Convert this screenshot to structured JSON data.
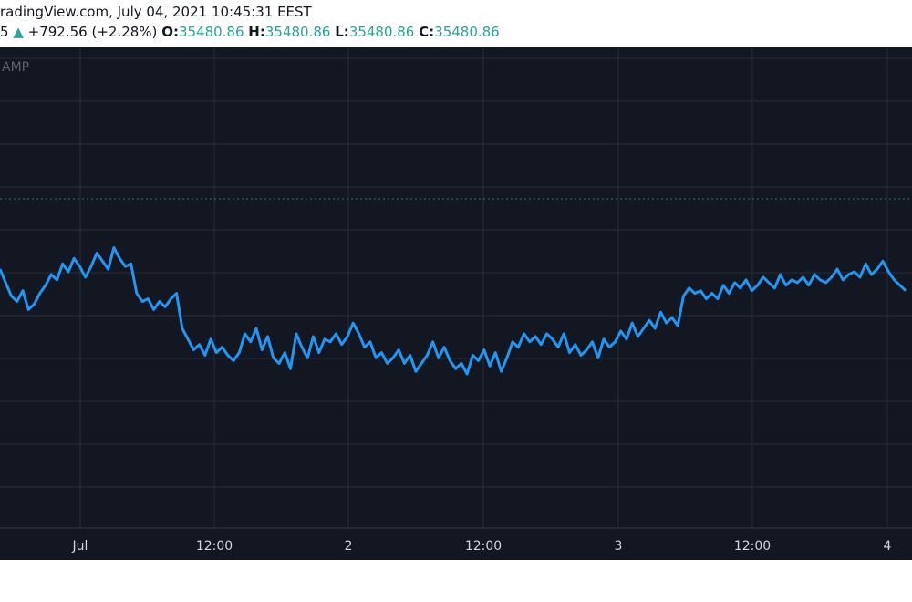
{
  "header": {
    "source_line": "radingView.com, July 04, 2021 10:45:31 EEST",
    "change_prefix": "5",
    "change_arrow": "▲",
    "change_text": "+792.56 (+2.28%)",
    "open_label": "O:",
    "open_value": "35480.86",
    "high_label": "H:",
    "high_value": "35480.86",
    "low_label": "L:",
    "low_value": "35480.86",
    "close_label": "C:",
    "close_value": "35480.86"
  },
  "watermark": "AMP",
  "colors": {
    "line": "#2196f3",
    "background": "#131722",
    "grid": "#2a2e39",
    "up": "#26a69a"
  },
  "chart_data": {
    "type": "line",
    "x_ticks": [
      "Jul",
      "12:00",
      "2",
      "12:00",
      "3",
      "12:00",
      "4"
    ],
    "grid": true,
    "series": [
      {
        "values": [
          0.82,
          0.77,
          0.72,
          0.7,
          0.74,
          0.67,
          0.69,
          0.73,
          0.76,
          0.8,
          0.78,
          0.84,
          0.81,
          0.86,
          0.83,
          0.79,
          0.83,
          0.88,
          0.85,
          0.82,
          0.9,
          0.86,
          0.83,
          0.84,
          0.73,
          0.7,
          0.71,
          0.67,
          0.7,
          0.68,
          0.71,
          0.73,
          0.6,
          0.56,
          0.52,
          0.54,
          0.5,
          0.56,
          0.51,
          0.53,
          0.5,
          0.48,
          0.51,
          0.58,
          0.55,
          0.6,
          0.52,
          0.57,
          0.49,
          0.47,
          0.51,
          0.45,
          0.58,
          0.53,
          0.49,
          0.57,
          0.51,
          0.56,
          0.55,
          0.58,
          0.54,
          0.57,
          0.62,
          0.58,
          0.53,
          0.55,
          0.49,
          0.51,
          0.47,
          0.49,
          0.52,
          0.47,
          0.5,
          0.44,
          0.47,
          0.5,
          0.55,
          0.49,
          0.53,
          0.48,
          0.45,
          0.47,
          0.43,
          0.5,
          0.48,
          0.52,
          0.46,
          0.51,
          0.44,
          0.49,
          0.55,
          0.53,
          0.58,
          0.55,
          0.57,
          0.54,
          0.58,
          0.56,
          0.53,
          0.58,
          0.51,
          0.54,
          0.5,
          0.52,
          0.55,
          0.49,
          0.56,
          0.53,
          0.55,
          0.59,
          0.56,
          0.62,
          0.57,
          0.6,
          0.63,
          0.6,
          0.66,
          0.62,
          0.64,
          0.61,
          0.72,
          0.75,
          0.73,
          0.74,
          0.71,
          0.73,
          0.71,
          0.76,
          0.73,
          0.77,
          0.75,
          0.78,
          0.74,
          0.76,
          0.79,
          0.77,
          0.75,
          0.8,
          0.76,
          0.78,
          0.77,
          0.79,
          0.76,
          0.8,
          0.78,
          0.77,
          0.79,
          0.82,
          0.78,
          0.8,
          0.81,
          0.79,
          0.84,
          0.8,
          0.82,
          0.85,
          0.81,
          0.78,
          0.76,
          0.74
        ]
      }
    ]
  }
}
